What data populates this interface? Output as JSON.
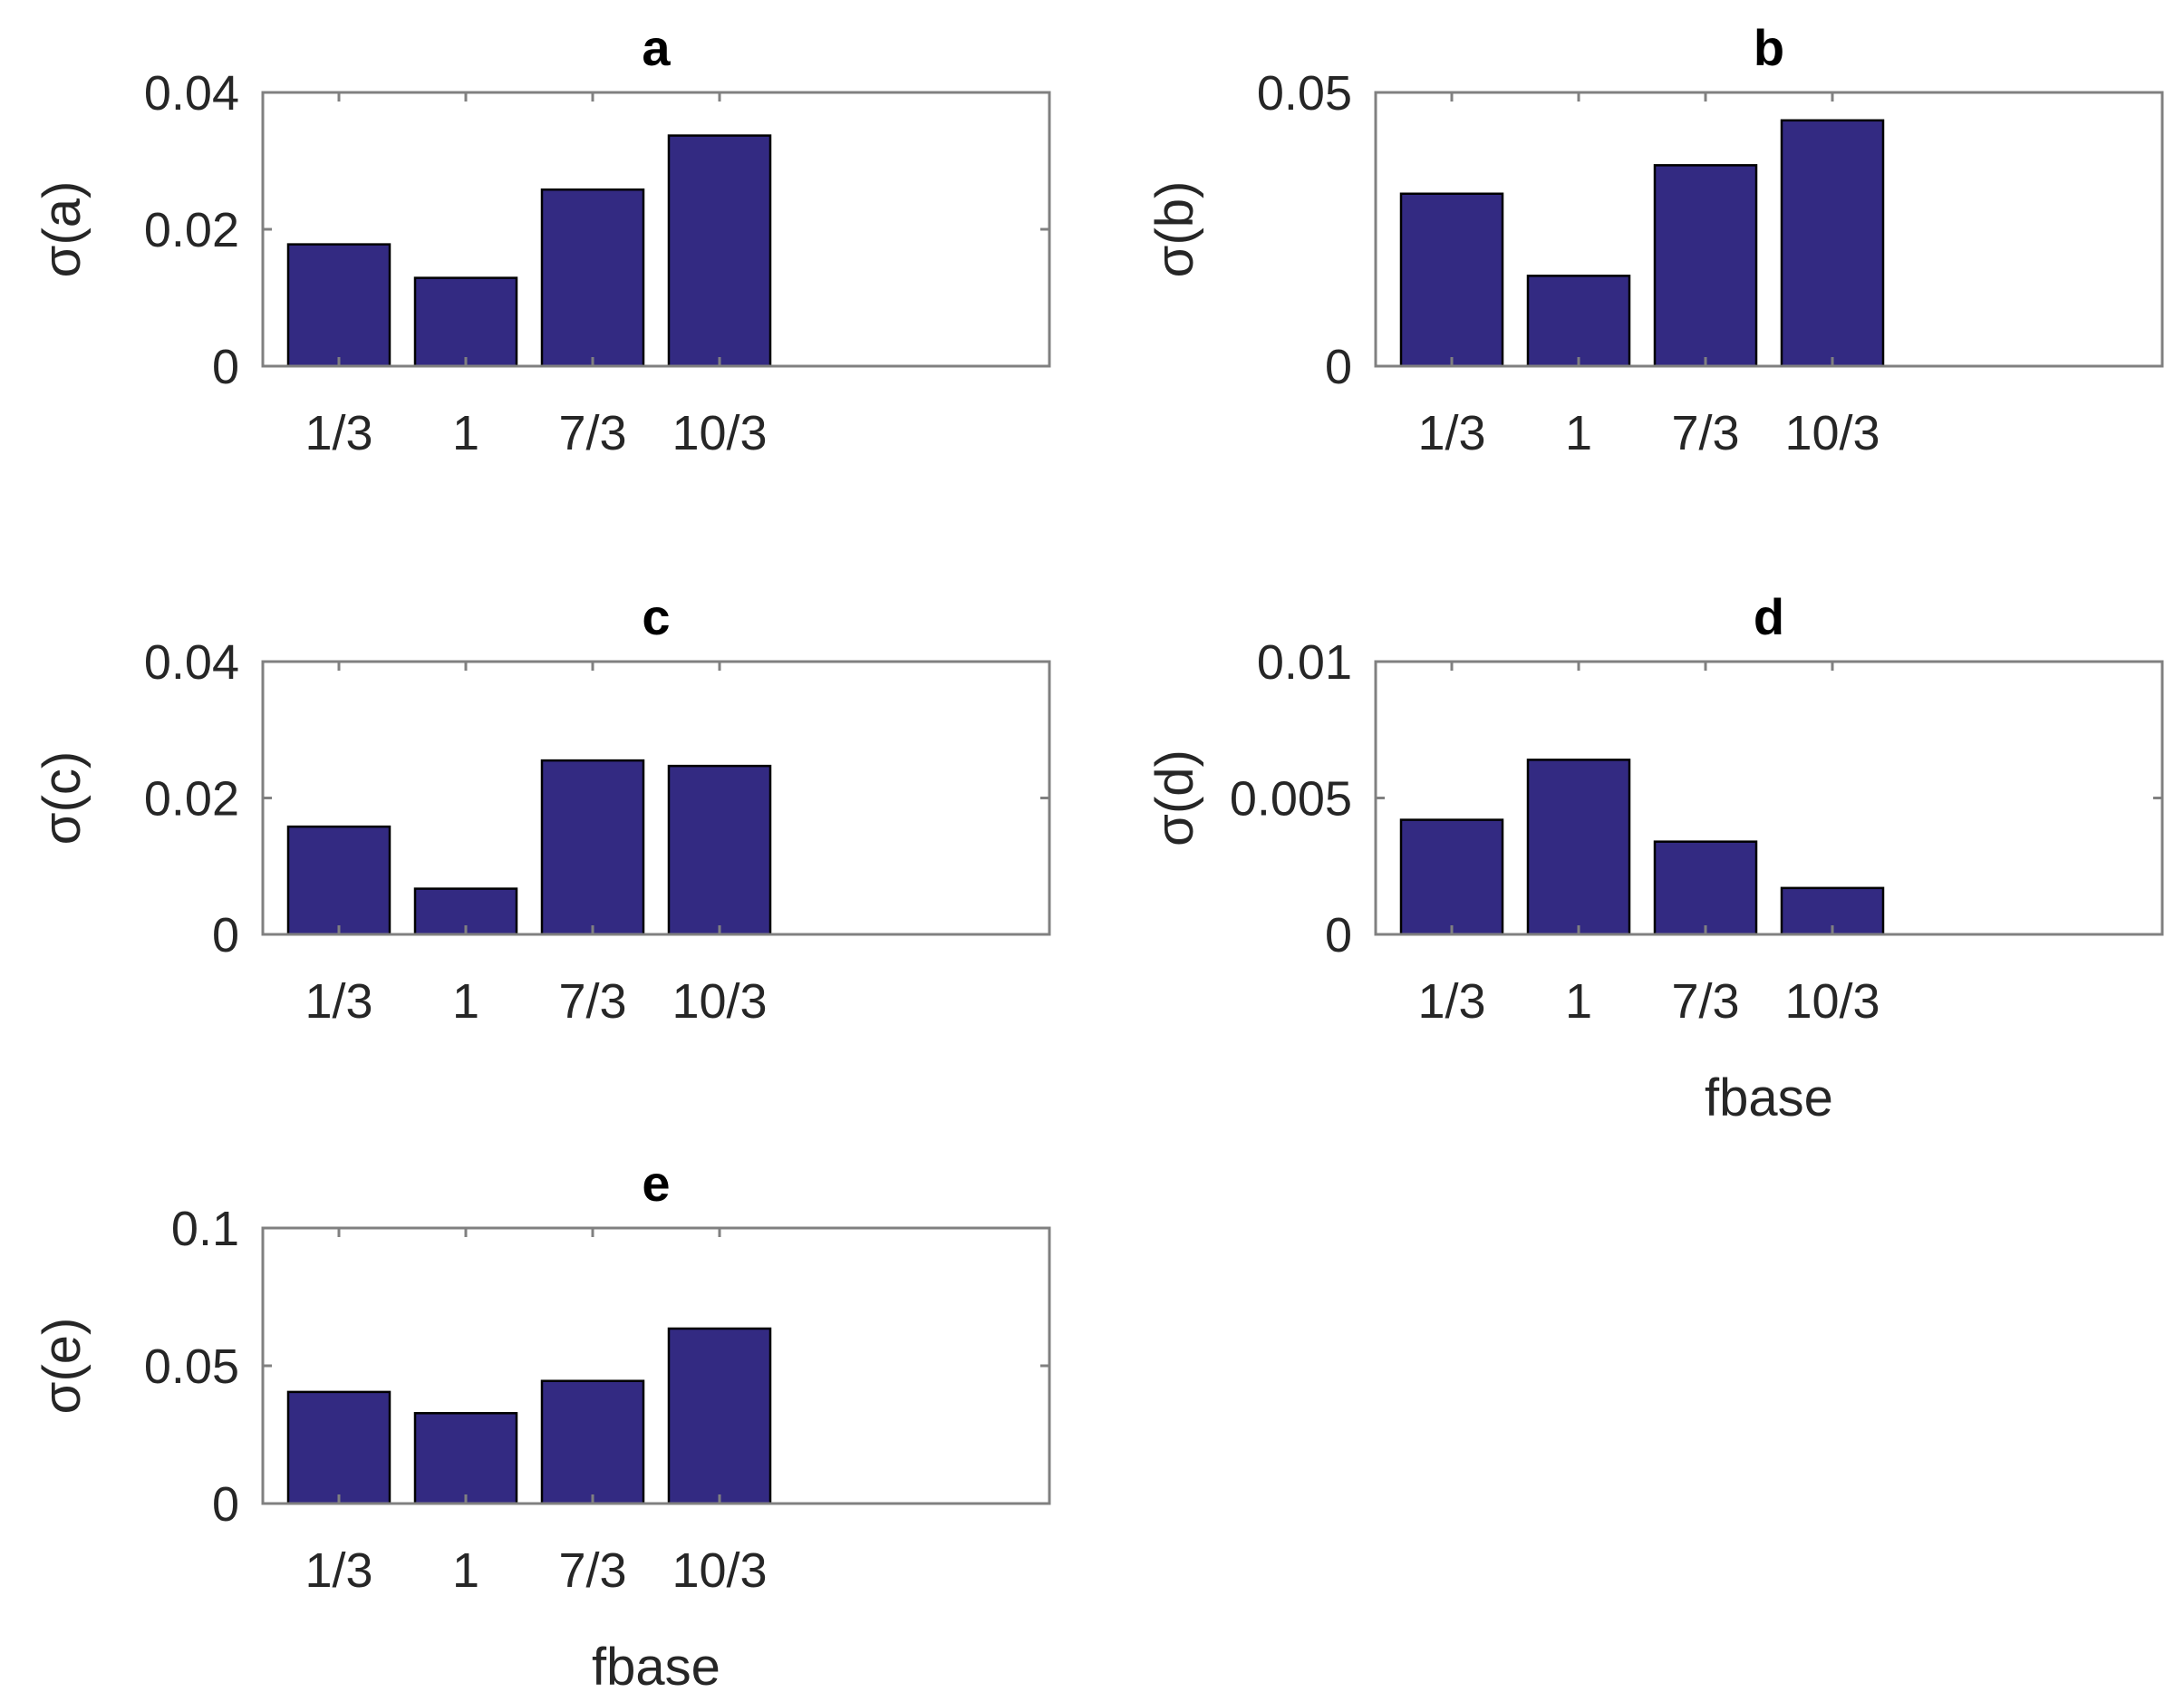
{
  "colors": {
    "bar": "#332A82",
    "bar_edge": "#000000",
    "axes": "#808080",
    "text": "#262626"
  },
  "chart_data": [
    {
      "type": "bar",
      "title": "a",
      "categories": [
        "1/3",
        "1",
        "7/3",
        "10/3"
      ],
      "values": [
        0.0178,
        0.0129,
        0.0258,
        0.0337
      ],
      "xlabel": "",
      "ylabel": "σ(a)",
      "ylim": [
        0,
        0.04
      ],
      "xlim": [
        0.4,
        6.6
      ],
      "yticks": [
        0,
        0.02,
        0.04
      ],
      "ytick_labels": [
        "0",
        "0.02",
        "0.04"
      ],
      "grid": false
    },
    {
      "type": "bar",
      "title": "b",
      "categories": [
        "1/3",
        "1",
        "7/3",
        "10/3"
      ],
      "values": [
        0.0315,
        0.0165,
        0.0367,
        0.0449
      ],
      "xlabel": "",
      "ylabel": "σ(b)",
      "ylim": [
        0,
        0.05
      ],
      "xlim": [
        0.4,
        6.6
      ],
      "yticks": [
        0,
        0.05
      ],
      "ytick_labels": [
        "0",
        "0.05"
      ],
      "grid": false
    },
    {
      "type": "bar",
      "title": "c",
      "categories": [
        "1/3",
        "1",
        "7/3",
        "10/3"
      ],
      "values": [
        0.0158,
        0.0067,
        0.0255,
        0.0247
      ],
      "xlabel": "",
      "ylabel": "σ(c)",
      "ylim": [
        0,
        0.04
      ],
      "xlim": [
        0.4,
        6.6
      ],
      "yticks": [
        0,
        0.02,
        0.04
      ],
      "ytick_labels": [
        "0",
        "0.02",
        "0.04"
      ],
      "grid": false
    },
    {
      "type": "bar",
      "title": "d",
      "categories": [
        "1/3",
        "1",
        "7/3",
        "10/3"
      ],
      "values": [
        0.0042,
        0.0064,
        0.0034,
        0.0017
      ],
      "xlabel": "fbase",
      "ylabel": "σ(d)",
      "ylim": [
        0,
        0.01
      ],
      "xlim": [
        0.4,
        6.6
      ],
      "yticks": [
        0,
        0.005,
        0.01
      ],
      "ytick_labels": [
        "0",
        "0.005",
        "0.01"
      ],
      "grid": false
    },
    {
      "type": "bar",
      "title": "e",
      "categories": [
        "1/3",
        "1",
        "7/3",
        "10/3"
      ],
      "values": [
        0.0405,
        0.0328,
        0.0445,
        0.0635
      ],
      "xlabel": "fbase",
      "ylabel": "σ(e)",
      "ylim": [
        0,
        0.1
      ],
      "xlim": [
        0.4,
        6.6
      ],
      "yticks": [
        0,
        0.05,
        0.1
      ],
      "ytick_labels": [
        "0",
        "0.05",
        "0.1"
      ],
      "grid": false
    }
  ]
}
